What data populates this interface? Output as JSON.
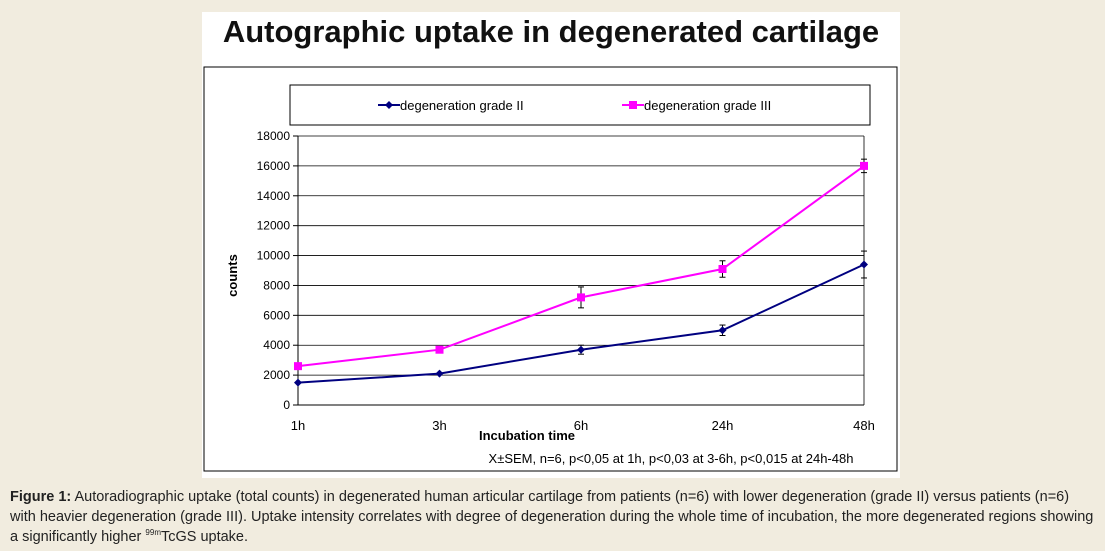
{
  "chart_data": {
    "type": "line",
    "title": "Autographic uptake in degenerated cartilage",
    "xlabel": "Incubation time",
    "ylabel": "counts",
    "categories": [
      "1h",
      "3h",
      "6h",
      "24h",
      "48h"
    ],
    "ylim": [
      0,
      18000
    ],
    "yticks": [
      0,
      2000,
      4000,
      6000,
      8000,
      10000,
      12000,
      14000,
      16000,
      18000
    ],
    "grid": true,
    "legend_position": "top",
    "series": [
      {
        "name": "degeneration grade II",
        "color": "#000080",
        "marker": "diamond",
        "values": [
          1500,
          2100,
          3700,
          5000,
          9400
        ],
        "errors": [
          0,
          0,
          300,
          350,
          900
        ]
      },
      {
        "name": "degeneration grade  III",
        "color": "#ff00ff",
        "marker": "square",
        "values": [
          2600,
          3700,
          7200,
          9100,
          16000
        ],
        "errors": [
          0,
          0,
          700,
          550,
          450
        ]
      }
    ],
    "annotation": "X±SEM, n=6, p<0,05 at 1h, p<0,03 at 3-6h, p<0,015 at 24h-48h"
  },
  "caption": {
    "label": "Figure 1:",
    "text_before_sup": " Autoradiographic uptake (total counts) in degenerated human articular cartilage from patients (n=6) with lower degeneration (grade II) versus patients (n=6) with heavier degeneration (grade III). Uptake intensity correlates with degree of degeneration during the whole time of incubation, the more degenerated regions showing a significantly higher ",
    "sup": "99m",
    "text_after_sup": "TcGS uptake."
  }
}
